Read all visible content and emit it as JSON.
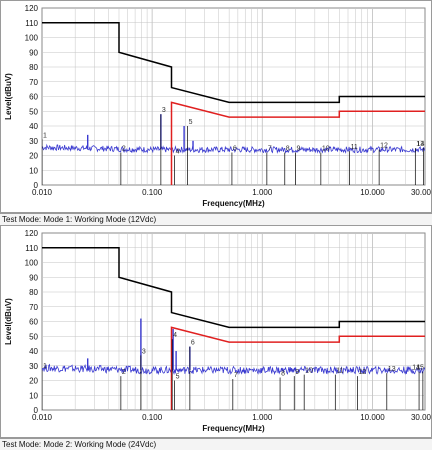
{
  "colors": {
    "limit": "#000000",
    "margin": "#e02020",
    "trace": "#3a3ad0",
    "marker": "#000000",
    "grid": "#c4c4c4",
    "plot_border": "#8a8a8a",
    "frame": "#9a9a9a"
  },
  "chart_data": [
    {
      "type": "line",
      "title": "",
      "xlabel": "Frequency(MHz)",
      "ylabel": "Level(dBuV)",
      "x_scale": "log",
      "xlim": [
        0.01,
        30
      ],
      "ylim": [
        0,
        120
      ],
      "grid": true,
      "y_ticks": [
        "0",
        "10",
        "20",
        "30",
        "40",
        "50",
        "60",
        "70",
        "80",
        "90",
        "100",
        "110",
        "120"
      ],
      "x_ticks": [
        {
          "value": 0.01,
          "label": "0.010"
        },
        {
          "value": 0.1,
          "label": "0.100"
        },
        {
          "value": 1,
          "label": "1.000"
        },
        {
          "value": 10,
          "label": "10.000"
        },
        {
          "value": 30,
          "label": "30.00"
        }
      ],
      "caption": "Test Mode: Mode 1: Working Mode (12Vdc)",
      "series": [
        {
          "role": "limit",
          "x": [
            0.009,
            0.05,
            0.05,
            0.15,
            0.15,
            0.5,
            5,
            5,
            30
          ],
          "y": [
            110,
            110,
            90,
            80,
            66,
            56,
            56,
            60,
            60
          ]
        },
        {
          "role": "margin",
          "x": [
            0.15,
            0.15,
            0.5,
            5,
            5,
            30
          ],
          "y": [
            0,
            56,
            46,
            46,
            50,
            50
          ]
        },
        {
          "role": "trace",
          "noise_floor_db": 24,
          "noise_amplitude_db": 2,
          "spikes": [
            [
              0.0092,
              31
            ],
            [
              0.026,
              34
            ],
            [
              0.12,
              48
            ],
            [
              0.195,
              40
            ],
            [
              0.235,
              30
            ]
          ]
        }
      ],
      "markers": [
        {
          "label": "1",
          "x": 0.0095,
          "y": 31
        },
        {
          "label": "2",
          "x": 0.052,
          "y": 22
        },
        {
          "label": "3",
          "x": 0.12,
          "y": 48
        },
        {
          "label": "4",
          "x": 0.16,
          "y": 20
        },
        {
          "label": "5",
          "x": 0.21,
          "y": 40
        },
        {
          "label": "6",
          "x": 0.53,
          "y": 22
        },
        {
          "label": "7",
          "x": 1.1,
          "y": 22
        },
        {
          "label": "8",
          "x": 1.6,
          "y": 22
        },
        {
          "label": "9",
          "x": 2.0,
          "y": 22
        },
        {
          "label": "10",
          "x": 3.4,
          "y": 22
        },
        {
          "label": "11",
          "x": 6.2,
          "y": 23
        },
        {
          "label": "12",
          "x": 11.5,
          "y": 24
        },
        {
          "label": "13",
          "x": 24.5,
          "y": 25
        },
        {
          "label": "14",
          "x": 29,
          "y": 25
        }
      ]
    },
    {
      "type": "line",
      "title": "",
      "xlabel": "Frequency(MHz)",
      "ylabel": "Level(dBuV)",
      "x_scale": "log",
      "xlim": [
        0.01,
        30
      ],
      "ylim": [
        0,
        120
      ],
      "grid": true,
      "y_ticks": [
        "0",
        "10",
        "20",
        "30",
        "40",
        "50",
        "60",
        "70",
        "80",
        "90",
        "100",
        "110",
        "120"
      ],
      "x_ticks": [
        {
          "value": 0.01,
          "label": "0.010"
        },
        {
          "value": 0.1,
          "label": "0.100"
        },
        {
          "value": 1,
          "label": "1.000"
        },
        {
          "value": 10,
          "label": "10.000"
        },
        {
          "value": 30,
          "label": "30.00"
        }
      ],
      "caption": "Test Mode: Mode 2: Working Mode (24Vdc)",
      "series": [
        {
          "role": "limit",
          "x": [
            0.009,
            0.05,
            0.05,
            0.15,
            0.15,
            0.5,
            5,
            5,
            30
          ],
          "y": [
            110,
            110,
            90,
            80,
            66,
            56,
            56,
            60,
            60
          ]
        },
        {
          "role": "margin",
          "x": [
            0.15,
            0.15,
            0.5,
            5,
            5,
            30
          ],
          "y": [
            0,
            56,
            46,
            46,
            50,
            50
          ]
        },
        {
          "role": "trace",
          "noise_floor_db": 27,
          "noise_amplitude_db": 2.5,
          "spikes": [
            [
              0.0095,
              30
            ],
            [
              0.026,
              35
            ],
            [
              0.079,
              62
            ],
            [
              0.151,
              48
            ],
            [
              0.155,
              55
            ],
            [
              0.165,
              40
            ],
            [
              0.22,
              43
            ]
          ]
        }
      ],
      "markers": [
        {
          "label": "1",
          "x": 0.0095,
          "y": 27
        },
        {
          "label": "2",
          "x": 0.052,
          "y": 23
        },
        {
          "label": "3",
          "x": 0.079,
          "y": 37
        },
        {
          "label": "4",
          "x": 0.152,
          "y": 48
        },
        {
          "label": "5",
          "x": 0.16,
          "y": 20
        },
        {
          "label": "6",
          "x": 0.22,
          "y": 43
        },
        {
          "label": "7",
          "x": 0.54,
          "y": 21
        },
        {
          "label": "8",
          "x": 1.45,
          "y": 22
        },
        {
          "label": "9",
          "x": 1.95,
          "y": 23
        },
        {
          "label": "10",
          "x": 2.4,
          "y": 24
        },
        {
          "label": "11",
          "x": 4.6,
          "y": 24
        },
        {
          "label": "12",
          "x": 7.3,
          "y": 23
        },
        {
          "label": "13",
          "x": 13.5,
          "y": 25
        },
        {
          "label": "14",
          "x": 26.5,
          "y": 26
        },
        {
          "label": "15",
          "x": 28.7,
          "y": 26
        }
      ]
    }
  ]
}
